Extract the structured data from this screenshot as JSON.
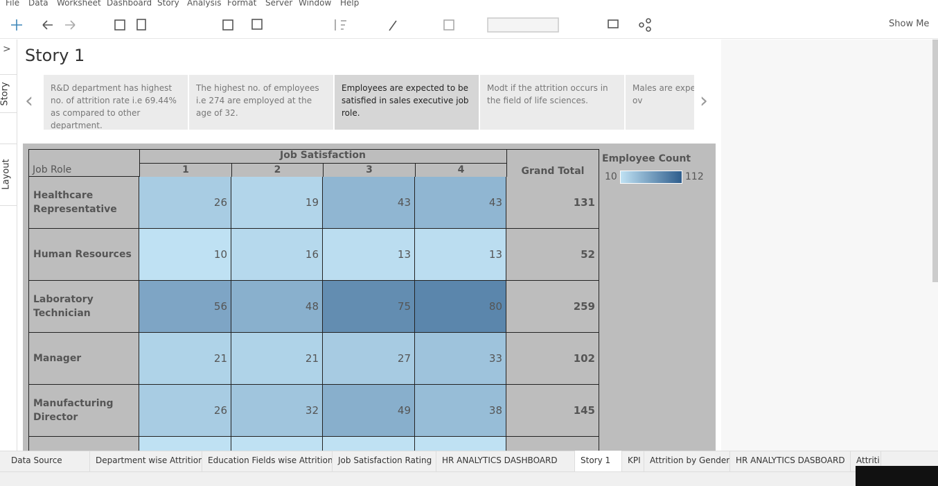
{
  "menu": [
    "File",
    "Data",
    "Worksheet",
    "Dashboard",
    "Story",
    "Analysis",
    "Format",
    "Server",
    "Window",
    "Help"
  ],
  "toolbar": {
    "show_me": "Show Me"
  },
  "side_tabs": [
    "Story",
    "Layout"
  ],
  "story": {
    "title": "Story 1",
    "points": [
      "R&D department has highest no. of attrition rate i.e 69.44% as compared to other department.",
      "The highest no. of employees i.e 274 are employed at the age of 32.",
      "Employees are expected to be satisfied in sales executive job role.",
      "Modt if the attrition occurs in the field of life sciences.",
      "Males are expec organisation ov"
    ],
    "selected_point": 2
  },
  "table": {
    "column_group": "Job Satisfaction",
    "row_header": "Job Role",
    "columns": [
      "1",
      "2",
      "3",
      "4",
      "Grand Total"
    ],
    "rows": [
      {
        "label": "Healthcare Representative",
        "values": [
          26,
          19,
          43,
          43
        ],
        "total": 131
      },
      {
        "label": "Human Resources",
        "values": [
          10,
          16,
          13,
          13
        ],
        "total": 52
      },
      {
        "label": "Laboratory Technician",
        "values": [
          56,
          48,
          75,
          80
        ],
        "total": 259
      },
      {
        "label": "Manager",
        "values": [
          21,
          21,
          27,
          33
        ],
        "total": 102
      },
      {
        "label": "Manufacturing Director",
        "values": [
          26,
          32,
          49,
          38
        ],
        "total": 145
      }
    ]
  },
  "legend": {
    "title": "Employee Count",
    "min": 10,
    "max": 112,
    "colors": [
      "#bfe1f3",
      "#2e5d8c"
    ]
  },
  "sheet_tabs": [
    "Data Source",
    "Department wise Attrition",
    "Education Fields wise Attrition",
    "Job Satisfaction Rating",
    "HR ANALYTICS DASHBOARD",
    "Story 1",
    "KPI",
    "Attrition by Gender",
    "HR ANALYTICS DASBOARD",
    "Attriti"
  ],
  "active_sheet": 5
}
